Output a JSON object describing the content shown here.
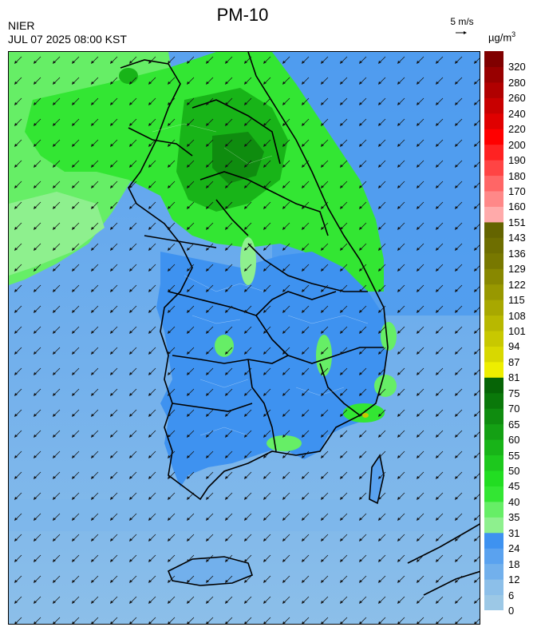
{
  "header": {
    "title": "PM-10",
    "agency": "NIER",
    "timestamp": "JUL 07 2025 08:00 KST",
    "wind_ref_label": "5 m/s",
    "unit_base": "µg/m",
    "unit_exp": "3"
  },
  "legend": {
    "bands": [
      {
        "label": "0",
        "color": "#9cc8e6"
      },
      {
        "label": "6",
        "color": "#8cbfe9"
      },
      {
        "label": "12",
        "color": "#72b0ec"
      },
      {
        "label": "18",
        "color": "#5aa2ef"
      },
      {
        "label": "24",
        "color": "#3e92f0"
      },
      {
        "label": "31",
        "color": "#8ef08e"
      },
      {
        "label": "35",
        "color": "#66ee66"
      },
      {
        "label": "40",
        "color": "#33e633"
      },
      {
        "label": "45",
        "color": "#22dd22"
      },
      {
        "label": "50",
        "color": "#1dc81d"
      },
      {
        "label": "55",
        "color": "#18b418"
      },
      {
        "label": "60",
        "color": "#14a014"
      },
      {
        "label": "65",
        "color": "#0f8c0f"
      },
      {
        "label": "70",
        "color": "#0a780a"
      },
      {
        "label": "75",
        "color": "#066406"
      },
      {
        "label": "81",
        "color": "#eeee00"
      },
      {
        "label": "87",
        "color": "#d8d800"
      },
      {
        "label": "94",
        "color": "#c8c800"
      },
      {
        "label": "101",
        "color": "#b8b800"
      },
      {
        "label": "108",
        "color": "#a8a800"
      },
      {
        "label": "115",
        "color": "#989800"
      },
      {
        "label": "122",
        "color": "#888800"
      },
      {
        "label": "129",
        "color": "#787800"
      },
      {
        "label": "136",
        "color": "#6e6e00"
      },
      {
        "label": "143",
        "color": "#646400"
      },
      {
        "label": "151",
        "color": "#ffaaaa"
      },
      {
        "label": "160",
        "color": "#ff8888"
      },
      {
        "label": "170",
        "color": "#ff6666"
      },
      {
        "label": "180",
        "color": "#ff4444"
      },
      {
        "label": "190",
        "color": "#ff2222"
      },
      {
        "label": "200",
        "color": "#ff0000"
      },
      {
        "label": "220",
        "color": "#e00000"
      },
      {
        "label": "240",
        "color": "#c80000"
      },
      {
        "label": "260",
        "color": "#b00000"
      },
      {
        "label": "280",
        "color": "#980000"
      },
      {
        "label": "320",
        "color": "#800000"
      }
    ]
  }
}
